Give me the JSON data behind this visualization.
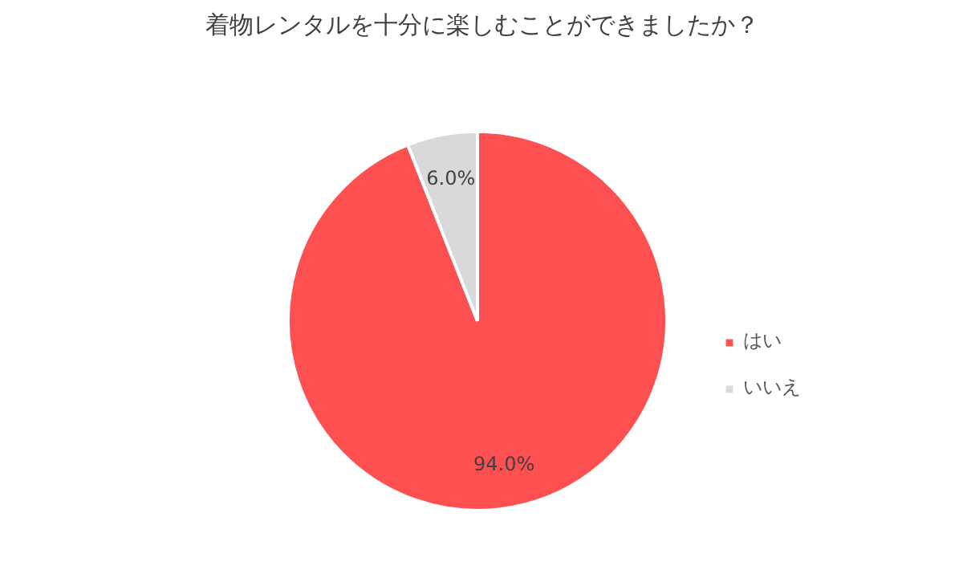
{
  "chart_data": {
    "type": "pie",
    "title": "着物レンタルを十分に楽しむことができましたか？",
    "categories": [
      "はい",
      "いいえ"
    ],
    "values": [
      94.0,
      6.0
    ],
    "colors": [
      "#fe5050",
      "#d9d9d9"
    ],
    "value_labels": [
      "94.0%",
      "6.0%"
    ],
    "legend": "right"
  }
}
